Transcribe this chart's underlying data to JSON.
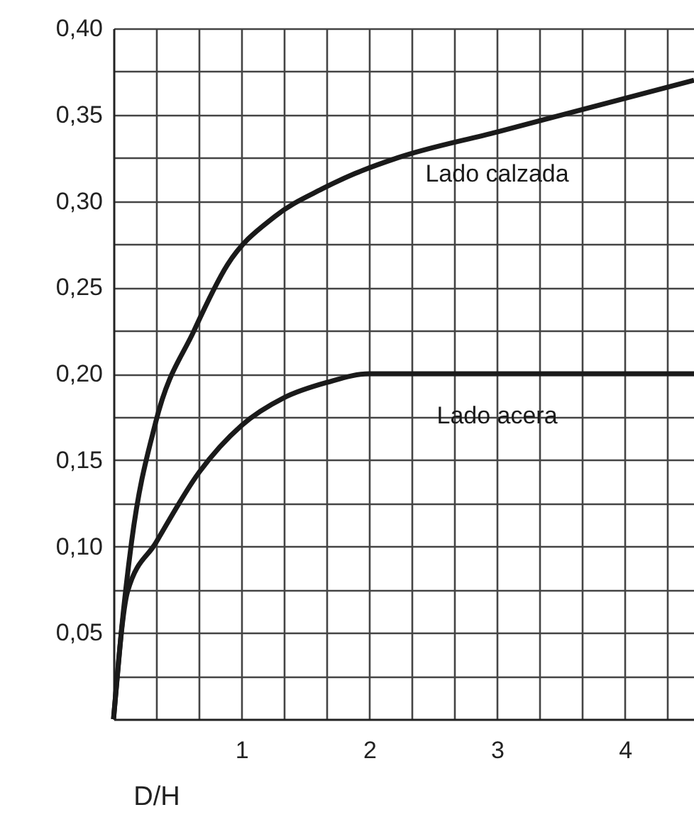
{
  "chart_data": {
    "type": "line",
    "xlabel": "D/H",
    "series": [
      {
        "name": "Lado calzada",
        "color": "#1a1a1a",
        "x": [
          0,
          0.06,
          0.14,
          0.33,
          0.63,
          0.89,
          1.26,
          1.63,
          1.89,
          2.22,
          3.0,
          4.54
        ],
        "values": [
          0,
          0.05,
          0.102,
          0.172,
          0.225,
          0.263,
          0.291,
          0.307,
          0.316,
          0.325,
          0.34,
          0.37
        ]
      },
      {
        "name": "Lado acera",
        "color": "#1a1a1a",
        "x": [
          0,
          0.11,
          0.33,
          0.67,
          1.0,
          1.33,
          1.67,
          2.0,
          3.0,
          4.54
        ],
        "values": [
          0,
          0.074,
          0.102,
          0.143,
          0.17,
          0.186,
          0.195,
          0.2,
          0.2,
          0.2
        ]
      }
    ],
    "xlim": [
      0,
      4.54
    ],
    "xticks": [
      {
        "value": 0.3333,
        "label": null
      },
      {
        "value": 0.6667,
        "label": null
      },
      1,
      {
        "value": 1.3333,
        "label": null
      },
      {
        "value": 1.6667,
        "label": null
      },
      2,
      {
        "value": 2.3333,
        "label": null
      },
      {
        "value": 2.6667,
        "label": null
      },
      3,
      {
        "value": 3.3333,
        "label": null
      },
      {
        "value": 3.6667,
        "label": null
      },
      4,
      {
        "value": 4.3333,
        "label": null
      }
    ],
    "ylim": [
      0,
      0.4
    ],
    "yticks": [
      {
        "value": 0.025,
        "label": null
      },
      {
        "value": 0.05,
        "label": "0,05"
      },
      {
        "value": 0.075,
        "label": null
      },
      {
        "value": 0.1,
        "label": "0,10"
      },
      {
        "value": 0.125,
        "label": null
      },
      {
        "value": 0.15,
        "label": "0,15"
      },
      {
        "value": 0.175,
        "label": null
      },
      {
        "value": 0.2,
        "label": "0,20"
      },
      {
        "value": 0.225,
        "label": null
      },
      {
        "value": 0.25,
        "label": "0,25"
      },
      {
        "value": 0.275,
        "label": null
      },
      {
        "value": 0.3,
        "label": "0,30"
      },
      {
        "value": 0.325,
        "label": null
      },
      {
        "value": 0.35,
        "label": "0,35"
      },
      {
        "value": 0.375,
        "label": null
      },
      {
        "value": 0.4,
        "label": "0,40"
      }
    ],
    "grid": true,
    "marker": "none",
    "line_style": "solid"
  }
}
